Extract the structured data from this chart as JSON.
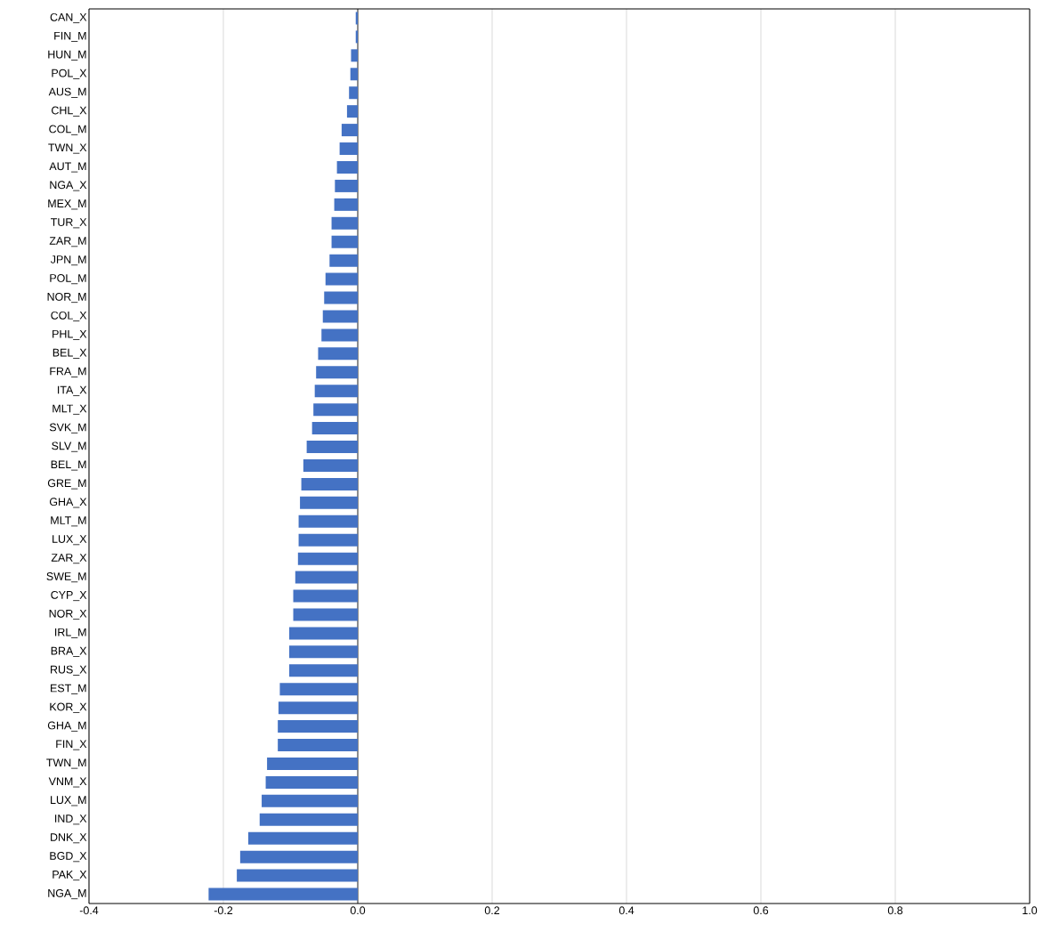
{
  "chart_data": {
    "type": "bar",
    "orientation": "horizontal",
    "categories": [
      "CAN_X",
      "FIN_M",
      "HUN_M",
      "POL_X",
      "AUS_M",
      "CHL_X",
      "COL_M",
      "TWN_X",
      "AUT_M",
      "NGA_X",
      "MEX_M",
      "TUR_X",
      "ZAR_M",
      "JPN_M",
      "POL_M",
      "NOR_M",
      "COL_X",
      "PHL_X",
      "BEL_X",
      "FRA_M",
      "ITA_X",
      "MLT_X",
      "SVK_M",
      "SLV_M",
      "BEL_M",
      "GRE_M",
      "GHA_X",
      "MLT_M",
      "LUX_X",
      "ZAR_X",
      "SWE_M",
      "CYP_X",
      "NOR_X",
      "IRL_M",
      "BRA_X",
      "RUS_X",
      "EST_M",
      "KOR_X",
      "GHA_M",
      "FIN_X",
      "TWN_M",
      "VNM_X",
      "LUX_M",
      "IND_X",
      "DNK_X",
      "BGD_X",
      "PAK_X",
      "NGA_M"
    ],
    "values": [
      -0.003,
      -0.003,
      -0.01,
      -0.011,
      -0.013,
      -0.016,
      -0.024,
      -0.027,
      -0.031,
      -0.034,
      -0.035,
      -0.039,
      -0.039,
      -0.042,
      -0.048,
      -0.05,
      -0.052,
      -0.054,
      -0.059,
      -0.062,
      -0.064,
      -0.066,
      -0.068,
      -0.076,
      -0.081,
      -0.084,
      -0.086,
      -0.088,
      -0.088,
      -0.089,
      -0.093,
      -0.096,
      -0.096,
      -0.102,
      -0.102,
      -0.102,
      -0.116,
      -0.118,
      -0.119,
      -0.119,
      -0.135,
      -0.137,
      -0.143,
      -0.146,
      -0.163,
      -0.175,
      -0.18,
      -0.222
    ],
    "color": "#4472c4",
    "xlim": [
      -0.4,
      1.0
    ],
    "xticks": [
      -0.4,
      -0.2,
      {
        "value": 0.0,
        "label": "0.0"
      },
      0.2,
      0.4,
      0.6,
      0.8,
      {
        "value": 1.0,
        "label": "1.0"
      }
    ],
    "grid": "x"
  }
}
